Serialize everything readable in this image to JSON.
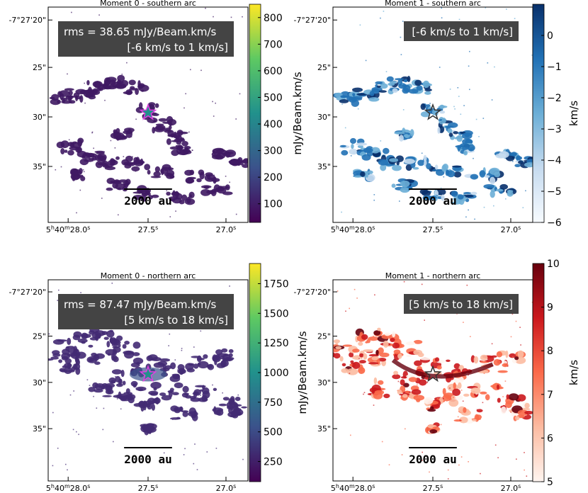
{
  "chart_data": [
    {
      "type": "heatmap",
      "title": "Moment 0 - southern arc",
      "xticks": [
        "5h40m28.0s",
        "27.5s",
        "27.0s"
      ],
      "yticks": [
        "-7°27'20\"",
        "25\"",
        "30\"",
        "35\""
      ],
      "annotation_lines": [
        "rms = 38.65 mJy/Beam.km/s",
        "[-6 km/s to 1 km/s]"
      ],
      "scalebar": "2000 au",
      "colorbar": {
        "label": "mJy/Beam.km/s",
        "cmap": "viridis",
        "range": [
          30,
          850
        ],
        "ticks": [
          100,
          200,
          300,
          400,
          500,
          600,
          700,
          800
        ]
      },
      "emission": {
        "color": "#3f1a63",
        "star_color": "#e040e0"
      }
    },
    {
      "type": "heatmap",
      "title": "Moment 1 - southern arc",
      "xticks": [
        "5h40m28.0s",
        "27.5s",
        "27.0s"
      ],
      "yticks": [
        "-7°27'20\"",
        "25\"",
        "30\"",
        "35\""
      ],
      "annotation_lines": [
        "[-6 km/s to 1 km/s]"
      ],
      "scalebar": "2000 au",
      "colorbar": {
        "label": "km/s",
        "cmap": "Blues",
        "range": [
          -6,
          1
        ],
        "ticks": [
          0,
          -1,
          -2,
          -3,
          -4,
          -5,
          -6
        ]
      },
      "emission": {
        "color": "#3d7fc0",
        "star_color": "#333333"
      }
    },
    {
      "type": "heatmap",
      "title": "Moment 0 - northern arc",
      "xticks": [
        "5h40m28.0s",
        "27.5s",
        "27.0s"
      ],
      "yticks": [
        "-7°27'20\"",
        "25\"",
        "30\"",
        "35\""
      ],
      "annotation_lines": [
        "rms = 87.47 mJy/Beam.km/s",
        "[5 km/s to 18 km/s]"
      ],
      "scalebar": "2000 au",
      "colorbar": {
        "label": "mJy/Beam.km/s",
        "cmap": "viridis",
        "range": [
          80,
          1920
        ],
        "ticks": [
          250,
          500,
          750,
          1000,
          1250,
          1500,
          1750
        ]
      },
      "emission": {
        "color": "#432a73",
        "star_color": "#e040e0"
      }
    },
    {
      "type": "heatmap",
      "title": "Moment 1 - northern arc",
      "xticks": [
        "5h40m28.0s",
        "27.5s",
        "27.0s"
      ],
      "yticks": [
        "-7°27'20\"",
        "25\"",
        "30\"",
        "35\""
      ],
      "annotation_lines": [
        "[5 km/s to 18 km/s]"
      ],
      "scalebar": "2000 au",
      "colorbar": {
        "label": "km/s",
        "cmap": "Reds",
        "range": [
          5,
          10
        ],
        "ticks": [
          5,
          6,
          7,
          8,
          9,
          10
        ]
      },
      "emission": {
        "color": "#f09a80",
        "star_color": "#333333"
      }
    }
  ],
  "colors": {
    "viridis": [
      "#440154",
      "#3b528b",
      "#21918c",
      "#5ec962",
      "#fde725"
    ],
    "blues": [
      "#f7fbff",
      "#c6dbef",
      "#6baed6",
      "#2171b5",
      "#08306b"
    ],
    "reds": [
      "#fff5f0",
      "#fcbba1",
      "#fb6a4a",
      "#cb181d",
      "#67000d"
    ],
    "annotation_bg": "#444444",
    "annotation_text": "#ffffff"
  }
}
